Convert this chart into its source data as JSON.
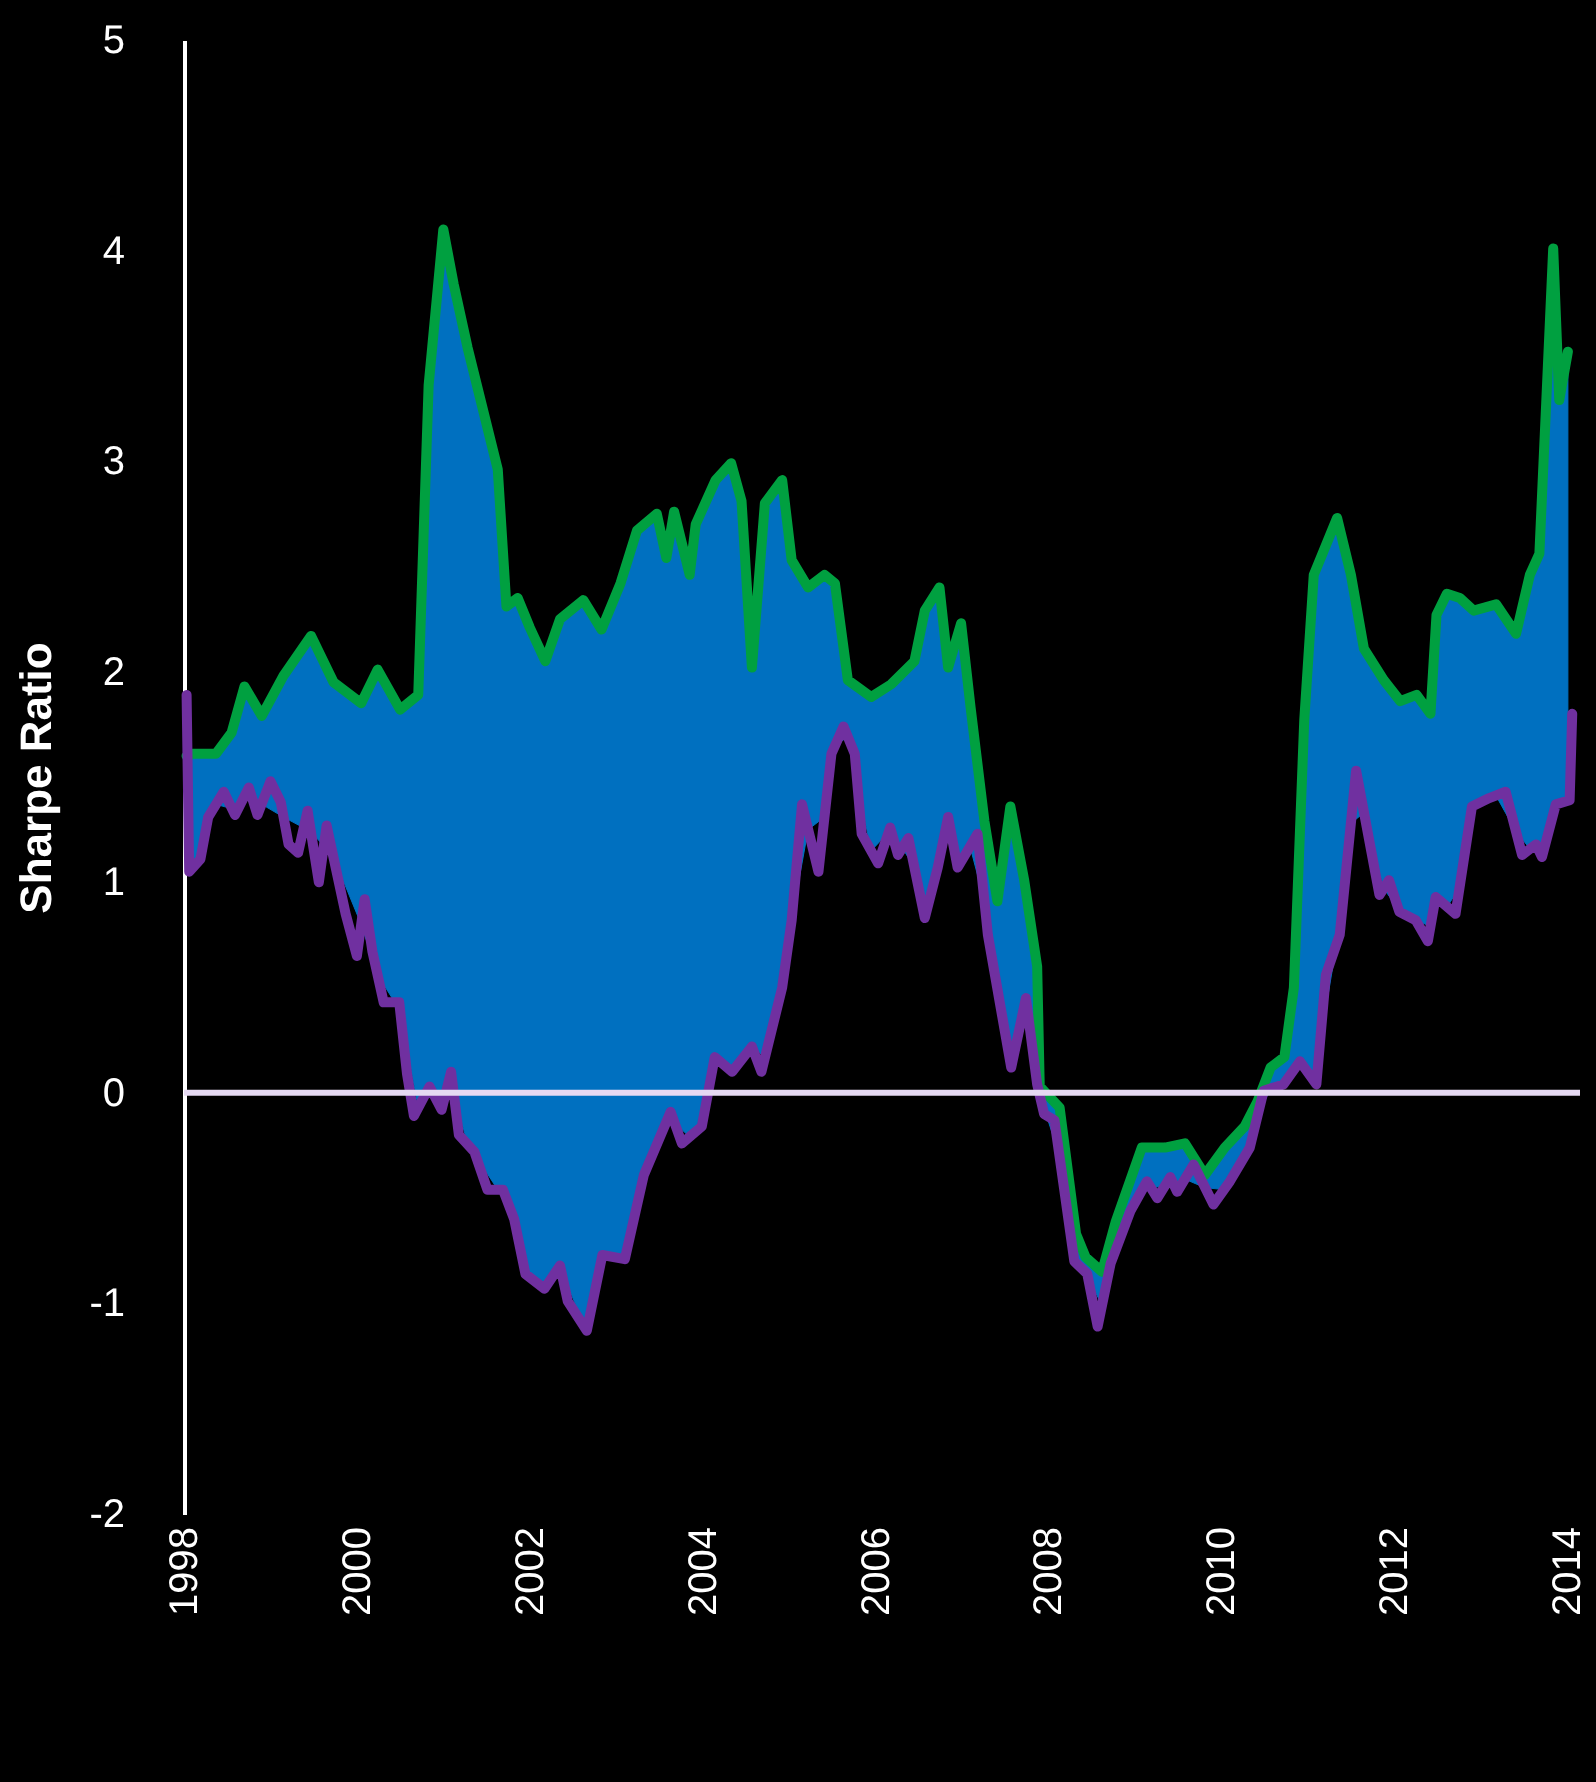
{
  "chart_data": {
    "type": "line",
    "ylabel": "Sharpe Ratio",
    "xlim": [
      1998,
      2014.15
    ],
    "xticks": [
      1998,
      2000,
      2002,
      2004,
      2006,
      2008,
      2010,
      2012,
      2014
    ],
    "ylim": [
      -2,
      5
    ],
    "yticks": [
      -2,
      -1,
      0,
      1,
      2,
      3,
      4,
      5
    ],
    "line_style": "solid",
    "colors": [
      "#0070c0"
    ],
    "ref_lines": [
      {
        "axis": "y",
        "value": 0,
        "color": "#e6d9f2"
      }
    ],
    "series": [
      {
        "color": "#00a040",
        "x": [
          1998.03,
          1998.1,
          1998.37,
          1998.55,
          1998.7,
          1998.9,
          1999.15,
          1999.47,
          1999.73,
          2000.05,
          2000.24,
          2000.5,
          2000.71,
          2000.83,
          2001.0,
          2001.12,
          2001.28,
          2001.63,
          2001.73,
          2001.86,
          2002.0,
          2002.18,
          2002.35,
          2002.62,
          2002.83,
          2003.05,
          2003.24,
          2003.47,
          2003.58,
          2003.67,
          2003.85,
          2003.92,
          2004.15,
          2004.33,
          2004.45,
          2004.57,
          2004.72,
          2004.92,
          2005.03,
          2005.22,
          2005.41,
          2005.53,
          2005.68,
          2005.95,
          2006.18,
          2006.45,
          2006.57,
          2006.74,
          2006.84,
          2006.99,
          2007.1,
          2007.26,
          2007.41,
          2007.56,
          2007.72,
          2007.87,
          2007.9,
          2008.13,
          2008.32,
          2008.43,
          2008.62,
          2008.78,
          2009.08,
          2009.35,
          2009.58,
          2009.81,
          2010.04,
          2010.27,
          2010.42,
          2010.57,
          2010.73,
          2010.84,
          2010.96,
          2011.07,
          2011.34,
          2011.5,
          2011.65,
          2011.88,
          2012.07,
          2012.26,
          2012.42,
          2012.49,
          2012.61,
          2012.76,
          2012.92,
          2013.18,
          2013.41,
          2013.57,
          2013.68,
          2013.84,
          2013.91,
          2014.01
        ],
        "values": [
          1.6,
          1.61,
          1.61,
          1.71,
          1.93,
          1.79,
          1.98,
          2.17,
          1.95,
          1.85,
          2.01,
          1.82,
          1.89,
          3.36,
          4.1,
          3.84,
          3.54,
          2.96,
          2.31,
          2.35,
          2.21,
          2.05,
          2.25,
          2.34,
          2.2,
          2.42,
          2.67,
          2.75,
          2.54,
          2.76,
          2.46,
          2.7,
          2.91,
          2.99,
          2.81,
          2.02,
          2.8,
          2.91,
          2.53,
          2.4,
          2.46,
          2.42,
          1.96,
          1.88,
          1.94,
          2.05,
          2.29,
          2.4,
          2.02,
          2.23,
          1.83,
          1.29,
          0.91,
          1.36,
          1.01,
          0.6,
          0.03,
          -0.07,
          -0.67,
          -0.78,
          -0.85,
          -0.61,
          -0.26,
          -0.26,
          -0.24,
          -0.39,
          -0.26,
          -0.16,
          -0.04,
          0.12,
          0.17,
          0.5,
          1.77,
          2.46,
          2.73,
          2.46,
          2.11,
          1.96,
          1.86,
          1.89,
          1.8,
          2.27,
          2.37,
          2.35,
          2.29,
          2.32,
          2.18,
          2.46,
          2.56,
          4.01,
          3.29,
          3.52
        ],
        "upper": [
          1.6,
          1.61,
          1.61,
          1.71,
          1.93,
          1.79,
          1.98,
          2.17,
          1.95,
          1.85,
          2.01,
          1.82,
          1.89,
          3.36,
          4.1,
          3.84,
          3.54,
          2.96,
          2.31,
          2.35,
          2.21,
          2.05,
          2.25,
          2.34,
          2.2,
          2.42,
          2.67,
          2.75,
          2.54,
          2.76,
          2.46,
          2.7,
          2.91,
          2.99,
          2.81,
          2.02,
          2.8,
          2.91,
          2.53,
          2.4,
          2.46,
          2.42,
          1.96,
          1.88,
          1.94,
          2.05,
          2.29,
          2.4,
          2.02,
          2.23,
          1.83,
          1.29,
          0.91,
          1.36,
          1.01,
          0.6,
          0.03,
          -0.07,
          -0.67,
          -0.78,
          -0.85,
          -0.61,
          -0.26,
          -0.26,
          -0.24,
          -0.39,
          -0.26,
          -0.16,
          -0.04,
          0.12,
          0.17,
          0.5,
          1.77,
          2.46,
          2.73,
          2.46,
          2.11,
          1.96,
          1.86,
          1.89,
          1.8,
          2.27,
          2.37,
          2.35,
          2.29,
          2.32,
          2.18,
          2.46,
          2.56,
          4.01,
          3.29,
          3.52
        ],
        "lower": [
          1.05,
          1.07,
          1.37,
          1.35,
          1.41,
          1.37,
          1.31,
          1.24,
          1.12,
          0.8,
          0.56,
          0.39,
          -0.07,
          0.02,
          -0.05,
          0.0,
          -0.24,
          -0.46,
          -0.5,
          -0.68,
          -0.88,
          -0.93,
          -0.82,
          -1.1,
          -0.79,
          -0.79,
          -0.54,
          -0.24,
          -0.14,
          -0.14,
          -0.21,
          -0.18,
          0.17,
          0.1,
          0.16,
          0.22,
          0.17,
          0.5,
          0.82,
          1.25,
          1.31,
          1.65,
          1.69,
          1.15,
          1.25,
          1.07,
          0.83,
          1.11,
          1.31,
          1.1,
          1.16,
          0.91,
          0.49,
          0.14,
          0.41,
          0.04,
          -0.01,
          -0.3,
          -0.81,
          -0.85,
          -1.01,
          -0.74,
          -0.46,
          -0.44,
          -0.41,
          -0.45,
          -0.46,
          -0.3,
          -0.11,
          0.02,
          0.05,
          0.11,
          0.12,
          0.06,
          0.72,
          1.28,
          1.33,
          0.97,
          0.86,
          0.82,
          0.79,
          0.93,
          0.88,
          0.98,
          1.36,
          1.41,
          1.24,
          1.16,
          1.15,
          1.32,
          1.37,
          1.39
        ]
      },
      {
        "color": "#7030a0",
        "x": [
          1998.03,
          1998.06,
          1998.19,
          1998.28,
          1998.46,
          1998.59,
          1998.75,
          1998.85,
          1999.0,
          1999.12,
          1999.21,
          1999.32,
          1999.43,
          1999.56,
          1999.65,
          1999.87,
          2000.0,
          2000.09,
          2000.18,
          2000.31,
          2000.49,
          2000.58,
          2000.66,
          2000.84,
          2000.98,
          2001.09,
          2001.18,
          2001.36,
          2001.51,
          2001.69,
          2001.82,
          2001.95,
          2002.17,
          2002.35,
          2002.44,
          2002.66,
          2002.84,
          2003.1,
          2003.32,
          2003.63,
          2003.76,
          2003.99,
          2004.14,
          2004.34,
          2004.57,
          2004.68,
          2004.92,
          2005.03,
          2005.15,
          2005.34,
          2005.49,
          2005.63,
          2005.76,
          2005.84,
          2006.03,
          2006.17,
          2006.26,
          2006.38,
          2006.57,
          2006.72,
          2006.84,
          2006.95,
          2007.18,
          2007.3,
          2007.57,
          2007.74,
          2007.87,
          2007.95,
          2008.07,
          2008.3,
          2008.45,
          2008.57,
          2008.72,
          2008.95,
          2009.14,
          2009.26,
          2009.41,
          2009.49,
          2009.68,
          2009.91,
          2010.1,
          2010.33,
          2010.49,
          2010.72,
          2010.91,
          2011.1,
          2011.21,
          2011.37,
          2011.56,
          2011.83,
          2011.94,
          2012.06,
          2012.25,
          2012.39,
          2012.48,
          2012.71,
          2012.9,
          2013.1,
          2013.29,
          2013.48,
          2013.64,
          2013.71,
          2013.87,
          2014.03,
          2014.06
        ],
        "values": [
          1.89,
          1.05,
          1.11,
          1.31,
          1.43,
          1.32,
          1.45,
          1.32,
          1.48,
          1.38,
          1.18,
          1.14,
          1.34,
          1.0,
          1.27,
          0.85,
          0.65,
          0.92,
          0.67,
          0.43,
          0.43,
          0.09,
          -0.11,
          0.03,
          -0.08,
          0.1,
          -0.2,
          -0.28,
          -0.46,
          -0.46,
          -0.6,
          -0.86,
          -0.93,
          -0.82,
          -0.99,
          -1.13,
          -0.77,
          -0.79,
          -0.39,
          -0.09,
          -0.24,
          -0.16,
          0.17,
          0.1,
          0.22,
          0.1,
          0.5,
          0.82,
          1.37,
          1.05,
          1.61,
          1.74,
          1.61,
          1.23,
          1.09,
          1.26,
          1.13,
          1.21,
          0.83,
          1.07,
          1.31,
          1.07,
          1.23,
          0.75,
          0.12,
          0.45,
          0.04,
          -0.1,
          -0.13,
          -0.8,
          -0.86,
          -1.11,
          -0.81,
          -0.56,
          -0.42,
          -0.5,
          -0.4,
          -0.47,
          -0.34,
          -0.53,
          -0.42,
          -0.26,
          0.01,
          0.04,
          0.15,
          0.04,
          0.56,
          0.75,
          1.53,
          0.94,
          1.01,
          0.86,
          0.82,
          0.72,
          0.93,
          0.85,
          1.36,
          1.4,
          1.43,
          1.13,
          1.18,
          1.12,
          1.37,
          1.39,
          1.8
        ]
      }
    ]
  }
}
